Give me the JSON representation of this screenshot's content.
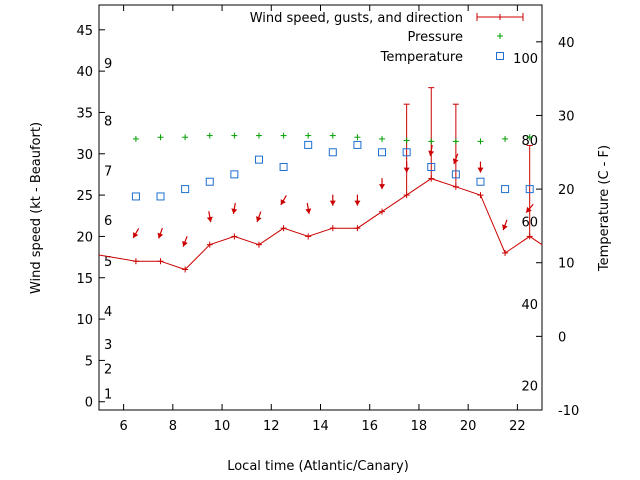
{
  "chart_data": {
    "type": "line",
    "xlabel": "Local time (Atlantic/Canary)",
    "ylabel": "Wind speed (kt - Beaufort)",
    "y2label": "Temperature (C - F)",
    "xlim": [
      5,
      23
    ],
    "ylim": [
      -1,
      48
    ],
    "y2lim": [
      -10,
      45
    ],
    "x_ticks": [
      6,
      8,
      10,
      12,
      14,
      16,
      18,
      20,
      22
    ],
    "y_ticks": [
      0,
      5,
      10,
      15,
      20,
      25,
      30,
      35,
      40,
      45
    ],
    "y2_ticks": [
      -10,
      0,
      10,
      20,
      30,
      40
    ],
    "beaufort_labels": [
      {
        "label": "1",
        "kt": 1
      },
      {
        "label": "2",
        "kt": 4
      },
      {
        "label": "3",
        "kt": 7
      },
      {
        "label": "4",
        "kt": 11
      },
      {
        "label": "5",
        "kt": 17
      },
      {
        "label": "6",
        "kt": 22
      },
      {
        "label": "7",
        "kt": 28
      },
      {
        "label": "8",
        "kt": 34
      },
      {
        "label": "9",
        "kt": 41
      }
    ],
    "fahrenheit_labels": [
      {
        "label": "20",
        "celsius": -6.7
      },
      {
        "label": "40",
        "celsius": 4.4
      },
      {
        "label": "60",
        "celsius": 15.6
      },
      {
        "label": "80",
        "celsius": 26.7
      },
      {
        "label": "100",
        "celsius": 37.8
      }
    ],
    "legend": {
      "position": "top-right",
      "entries": [
        "Wind speed, gusts, and direction",
        "Pressure",
        "Temperature"
      ]
    },
    "series": [
      {
        "name": "Wind speed, gusts, and direction",
        "color": "#cc0000",
        "x": [
          4.5,
          6.5,
          7.5,
          8.5,
          9.5,
          10.5,
          11.5,
          12.5,
          13.5,
          14.5,
          15.5,
          16.5,
          17.5,
          18.5,
          19.5,
          20.5,
          21.5,
          22.5,
          23.5
        ],
        "speed": [
          18,
          17,
          17,
          16,
          19,
          20,
          19,
          21,
          20,
          21,
          21,
          23,
          25,
          27,
          26,
          25,
          18,
          20,
          18
        ],
        "gust": [
          null,
          null,
          null,
          null,
          null,
          null,
          null,
          null,
          null,
          null,
          null,
          null,
          36,
          38,
          36,
          null,
          null,
          31,
          null
        ],
        "direction_deg": [
          null,
          30,
          20,
          20,
          350,
          10,
          20,
          30,
          350,
          0,
          0,
          0,
          0,
          10,
          20,
          0,
          20,
          40,
          null
        ]
      },
      {
        "name": "Pressure",
        "color": "#00a000",
        "x": [
          6.5,
          7.5,
          8.5,
          9.5,
          10.5,
          11.5,
          12.5,
          13.5,
          14.5,
          15.5,
          16.5,
          17.5,
          18.5,
          19.5,
          20.5,
          21.5,
          22.5
        ],
        "values_kt": [
          31.8,
          32,
          32,
          32.2,
          32.2,
          32.2,
          32.2,
          32.2,
          32.2,
          32,
          31.8,
          31.6,
          31.5,
          31.5,
          31.5,
          31.8,
          32
        ]
      },
      {
        "name": "Temperature",
        "color": "#1e6fd0",
        "x": [
          6.5,
          7.5,
          8.5,
          9.5,
          10.5,
          11.5,
          12.5,
          13.5,
          14.5,
          15.5,
          16.5,
          17.5,
          18.5,
          19.5,
          20.5,
          21.5,
          22.5
        ],
        "values_c": [
          19,
          19,
          20,
          21,
          22,
          24,
          23,
          26,
          25,
          26,
          25,
          25,
          23,
          22,
          21,
          20,
          20
        ]
      }
    ]
  }
}
